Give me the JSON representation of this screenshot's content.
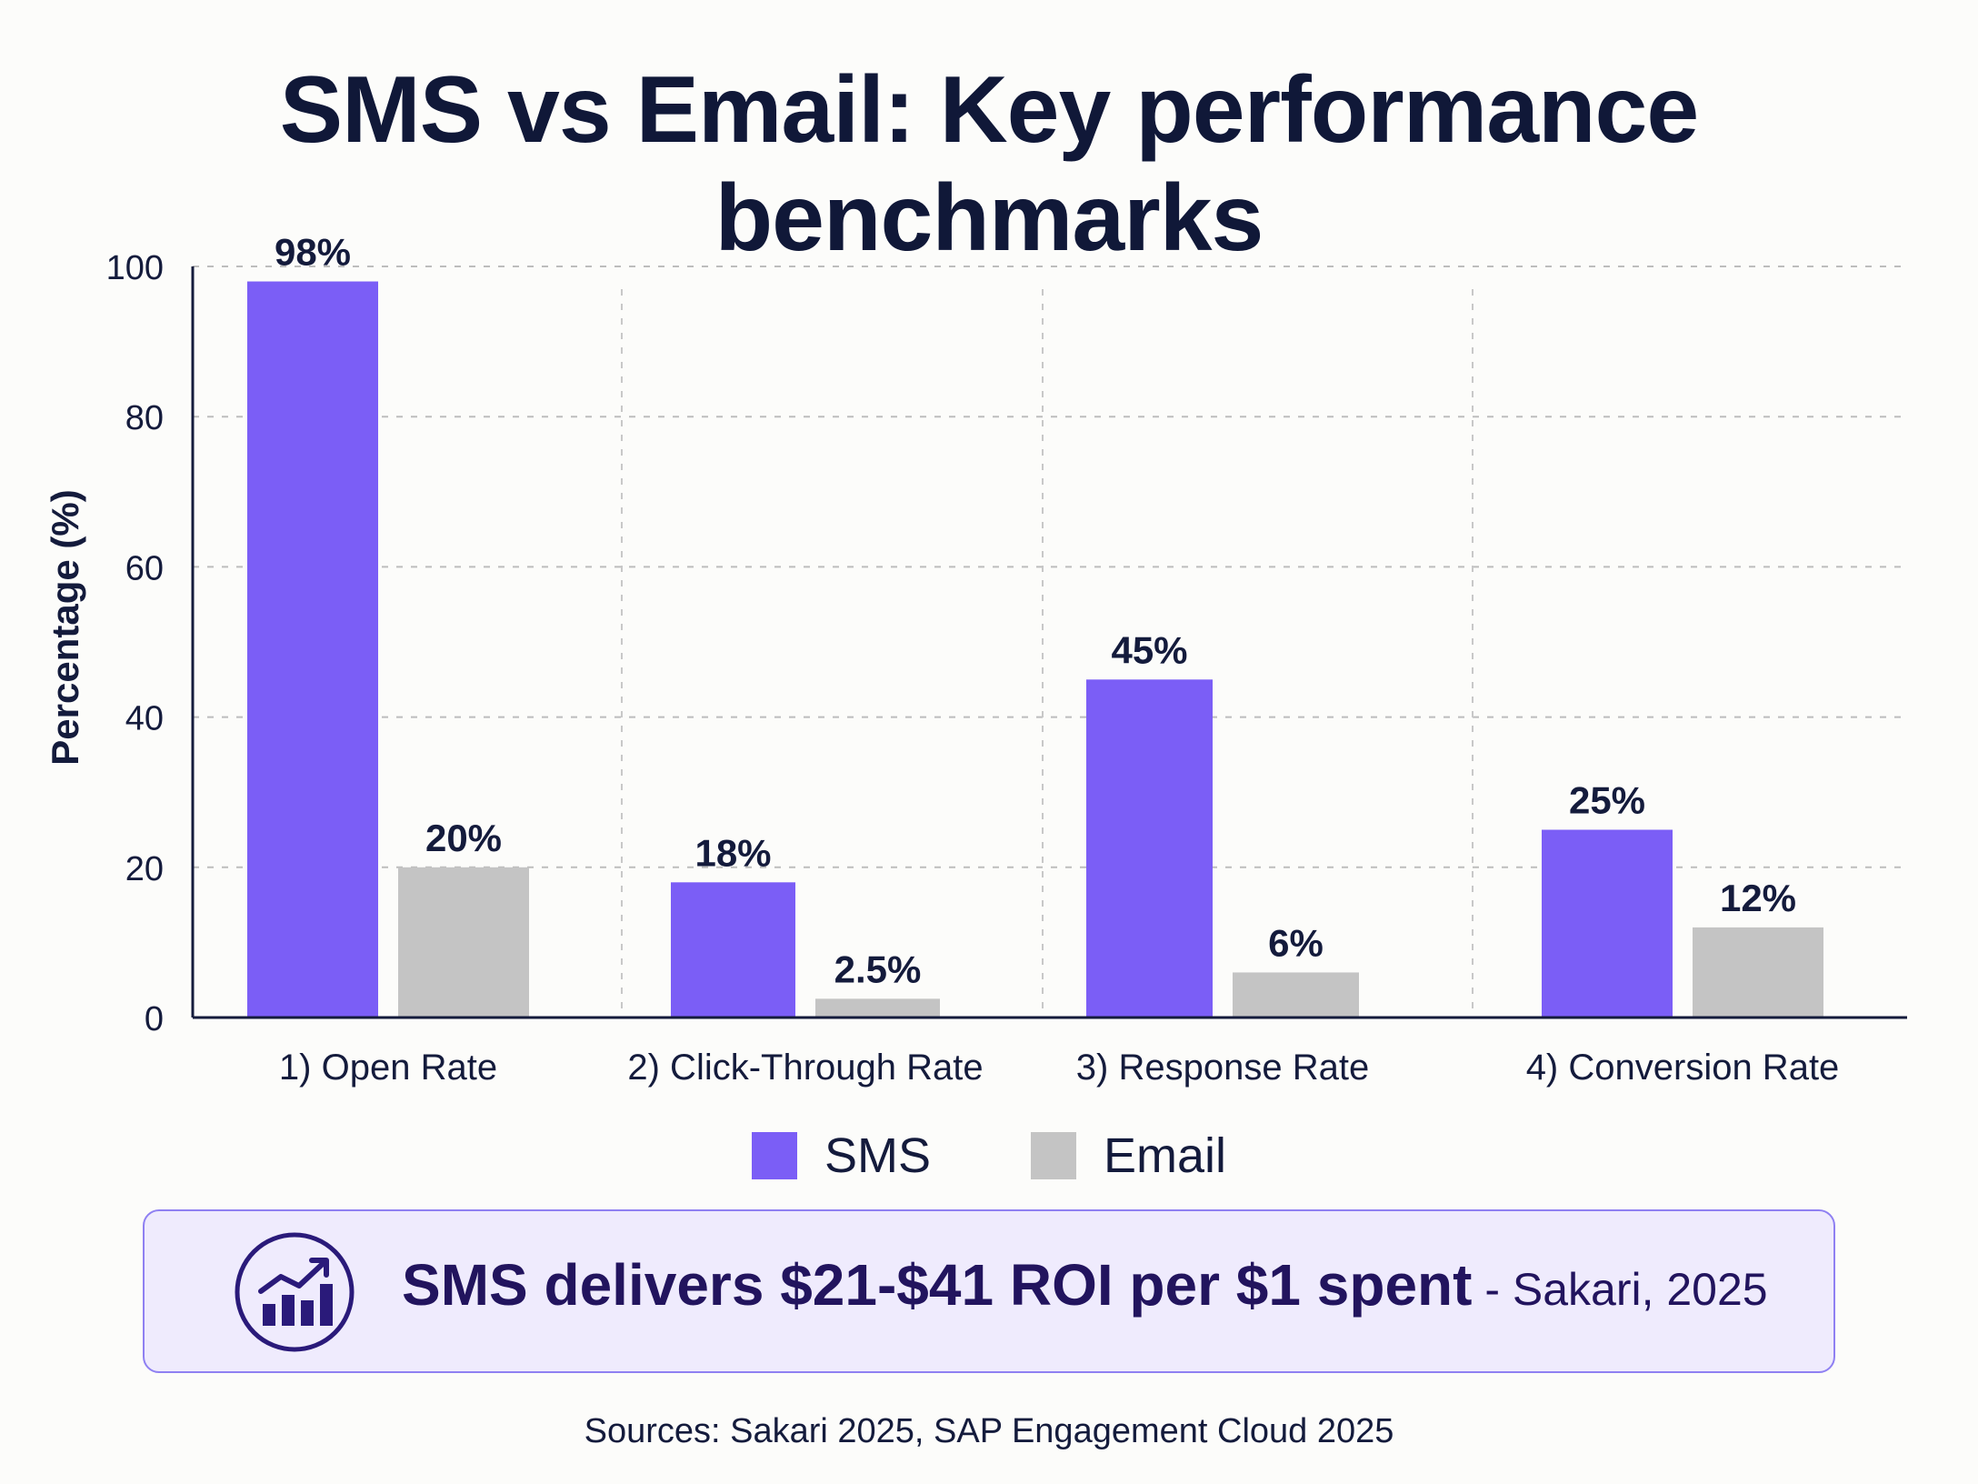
{
  "title": "SMS vs Email: Key performance benchmarks",
  "chart_data": {
    "type": "bar",
    "title": "SMS vs Email: Key performance benchmarks",
    "ylabel": "Percentage (%)",
    "xlabel": "",
    "ylim": [
      0,
      100
    ],
    "yticks": [
      "0",
      "20",
      "40",
      "60",
      "80",
      "100"
    ],
    "grid": true,
    "legend_position": "bottom-center",
    "categories": [
      "1) Open Rate",
      "2) Click-Through Rate",
      "3) Response Rate",
      "4) Conversion Rate"
    ],
    "series": [
      {
        "name": "SMS",
        "color": "#7b5ef6",
        "values": [
          98,
          18,
          45,
          25
        ],
        "labels": [
          "98%",
          "18%",
          "45%",
          "25%"
        ]
      },
      {
        "name": "Email",
        "color": "#c4c4c4",
        "values": [
          20,
          2.5,
          6,
          12
        ],
        "labels": [
          "20%",
          "2.5%",
          "6%",
          "12%"
        ]
      }
    ]
  },
  "callout": {
    "icon": "chart-growth-icon",
    "text": "SMS delivers $21-$41 ROI per $1 spent",
    "source": " - Sakari, 2025"
  },
  "footer": {
    "sources": "Sources: Sakari 2025, SAP Engagement Cloud 2025"
  }
}
